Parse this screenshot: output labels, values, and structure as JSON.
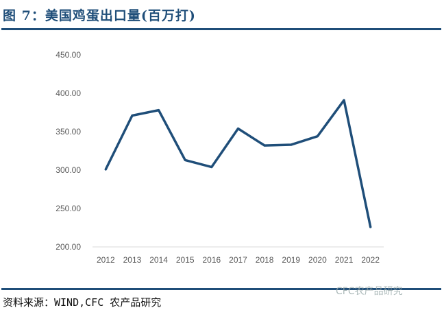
{
  "title": "图 7：美国鸡蛋出口量(百万打)",
  "source": "资料来源：WIND,CFC 农产品研究",
  "watermark": "CFC农产品研究",
  "colors": {
    "line": "#1f4e79",
    "accent": "#1f4e79"
  },
  "chart_data": {
    "type": "line",
    "title": "",
    "xlabel": "",
    "ylabel": "",
    "categories": [
      "2012",
      "2013",
      "2014",
      "2015",
      "2016",
      "2017",
      "2018",
      "2019",
      "2020",
      "2021",
      "2022"
    ],
    "values": [
      301,
      371,
      378,
      313,
      304,
      354,
      332,
      333,
      344,
      391,
      226
    ],
    "ylim": [
      200,
      450
    ],
    "yticks": [
      "200.00",
      "250.00",
      "300.00",
      "350.00",
      "400.00",
      "450.00"
    ],
    "grid": false,
    "legend": "none"
  }
}
